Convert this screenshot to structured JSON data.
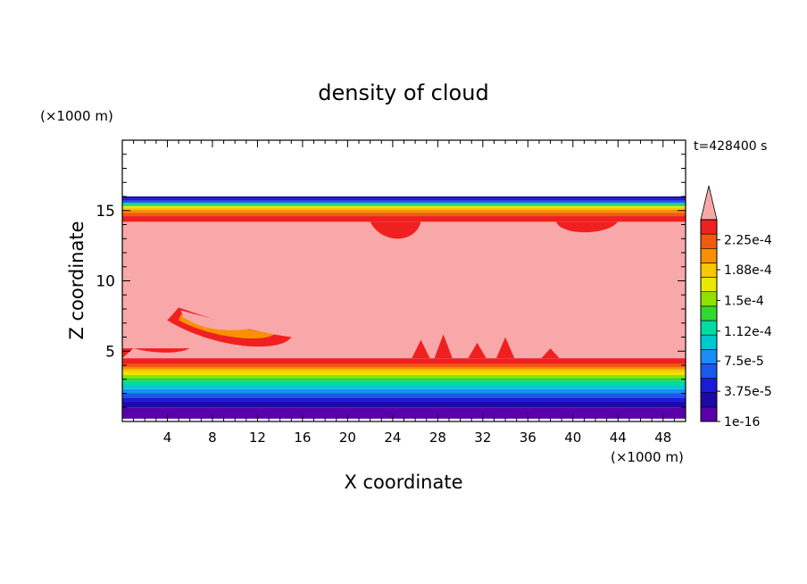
{
  "chart_data": {
    "type": "heatmap",
    "title": "density of cloud",
    "time_label": "t=428400 s",
    "xlabel": "X coordinate",
    "ylabel": "Z coordinate",
    "x_unit": "(×1000 m)",
    "y_unit": "(×1000 m)",
    "xlim": [
      0,
      50
    ],
    "ylim": [
      0,
      20
    ],
    "x_ticks": [
      "4",
      "8",
      "12",
      "16",
      "20",
      "24",
      "28",
      "32",
      "36",
      "40",
      "44",
      "48"
    ],
    "x_tick_values": [
      4,
      8,
      12,
      16,
      20,
      24,
      28,
      32,
      36,
      40,
      44,
      48
    ],
    "y_ticks": [
      "5",
      "10",
      "15"
    ],
    "y_tick_values": [
      5,
      10,
      15
    ],
    "colorbar": {
      "labels": [
        "2.25e-4",
        "1.88e-4",
        "1.5e-4",
        "1.12e-4",
        "7.5e-5",
        "3.75e-5",
        "1e-16"
      ],
      "label_values": [
        0.000225,
        0.000188,
        0.00015,
        0.000112,
        7.5e-05,
        3.75e-05,
        1e-16
      ],
      "colors": [
        "#5a00a8",
        "#1c0aa8",
        "#1a1ad8",
        "#1a5ae8",
        "#1a8ef4",
        "#00c8d0",
        "#00dca0",
        "#30d830",
        "#90e000",
        "#e8e800",
        "#f8c800",
        "#f89000",
        "#f05a10",
        "#f02020",
        "#f8a8a8"
      ],
      "extend": "max"
    },
    "fields": {
      "cloud_base_km": 3.8,
      "cloud_top_km": 16.0,
      "saturated_core": [
        4.5,
        14.2
      ]
    }
  }
}
